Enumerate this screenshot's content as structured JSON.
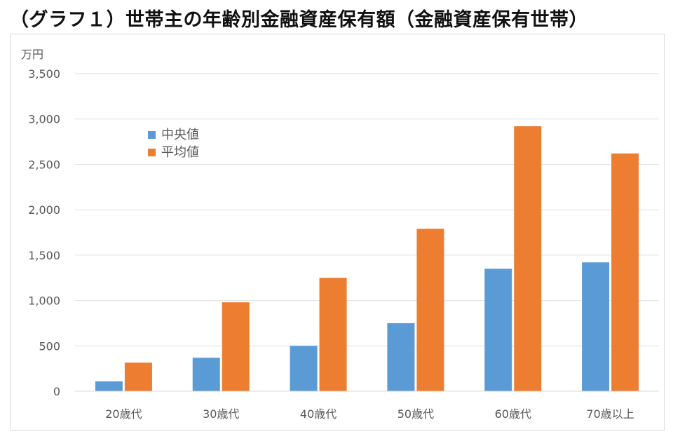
{
  "title": "（グラフ１）世帯主の年齢別金融資産保有額（金融資産保有世帯）",
  "colors": {
    "median": "#5b9bd5",
    "mean": "#ed7d31",
    "grid": "#e0e0e0",
    "axis": "#d9d9d9",
    "text": "#595959"
  },
  "chart_data": {
    "type": "bar",
    "unit_label": "万円",
    "categories": [
      "20歳代",
      "30歳代",
      "40歳代",
      "50歳代",
      "60歳代",
      "70歳以上"
    ],
    "series": [
      {
        "name": "中央値",
        "values": [
          109,
          369,
          500,
          750,
          1350,
          1420
        ]
      },
      {
        "name": "平均値",
        "values": [
          315,
          980,
          1250,
          1790,
          2920,
          2620
        ]
      }
    ],
    "ylim": [
      0,
      3500
    ],
    "yticks": [
      0,
      500,
      1000,
      1500,
      2000,
      2500,
      3000,
      3500
    ],
    "ytick_labels": [
      "0",
      "500",
      "1,000",
      "1,500",
      "2,000",
      "2,500",
      "3,000",
      "3,500"
    ],
    "grid": true,
    "legend_position": "top-left inside plot"
  }
}
